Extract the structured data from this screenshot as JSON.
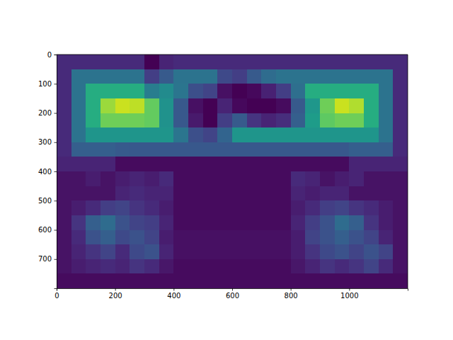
{
  "chart_data": {
    "type": "heatmap",
    "color": "viridis",
    "zlim": [
      0,
      1
    ],
    "xlim": [
      0,
      1200
    ],
    "ylim": [
      800,
      0
    ],
    "xticks": [
      0,
      200,
      400,
      600,
      800,
      1000
    ],
    "yticks": [
      0,
      100,
      200,
      300,
      400,
      500,
      600,
      700
    ],
    "xbins": [
      0,
      50,
      100,
      150,
      200,
      250,
      300,
      350,
      400,
      450,
      500,
      550,
      600,
      650,
      700,
      750,
      800,
      850,
      900,
      950,
      1000,
      1050,
      1100,
      1150,
      1200
    ],
    "ybins": [
      0,
      50,
      100,
      150,
      200,
      250,
      300,
      350,
      400,
      450,
      500,
      550,
      600,
      650,
      700,
      750,
      800
    ],
    "cells": [
      [
        0.12,
        0.12,
        0.12,
        0.12,
        0.12,
        0.12,
        0.0,
        0.1,
        0.12,
        0.12,
        0.12,
        0.12,
        0.12,
        0.12,
        0.12,
        0.12,
        0.12,
        0.12,
        0.12,
        0.12,
        0.12,
        0.12,
        0.12,
        0.12
      ],
      [
        0.12,
        0.38,
        0.38,
        0.38,
        0.38,
        0.38,
        0.18,
        0.28,
        0.38,
        0.38,
        0.38,
        0.22,
        0.18,
        0.28,
        0.35,
        0.38,
        0.38,
        0.38,
        0.38,
        0.38,
        0.38,
        0.38,
        0.38,
        0.12
      ],
      [
        0.12,
        0.38,
        0.62,
        0.62,
        0.62,
        0.62,
        0.42,
        0.48,
        0.39,
        0.24,
        0.2,
        0.04,
        0.0,
        0.02,
        0.09,
        0.18,
        0.36,
        0.62,
        0.62,
        0.62,
        0.62,
        0.62,
        0.38,
        0.12
      ],
      [
        0.12,
        0.38,
        0.62,
        0.85,
        0.92,
        0.9,
        0.76,
        0.51,
        0.27,
        0.04,
        0.0,
        0.1,
        0.02,
        0.0,
        0.0,
        0.03,
        0.28,
        0.53,
        0.78,
        0.92,
        0.88,
        0.62,
        0.38,
        0.12
      ],
      [
        0.12,
        0.38,
        0.62,
        0.78,
        0.78,
        0.78,
        0.76,
        0.51,
        0.27,
        0.07,
        0.0,
        0.18,
        0.28,
        0.15,
        0.1,
        0.13,
        0.3,
        0.55,
        0.75,
        0.78,
        0.78,
        0.62,
        0.38,
        0.12
      ],
      [
        0.12,
        0.38,
        0.52,
        0.52,
        0.52,
        0.52,
        0.52,
        0.52,
        0.39,
        0.24,
        0.2,
        0.32,
        0.52,
        0.52,
        0.52,
        0.52,
        0.52,
        0.52,
        0.52,
        0.52,
        0.52,
        0.52,
        0.38,
        0.12
      ],
      [
        0.12,
        0.3,
        0.3,
        0.3,
        0.28,
        0.27,
        0.27,
        0.27,
        0.27,
        0.27,
        0.27,
        0.27,
        0.27,
        0.27,
        0.27,
        0.27,
        0.27,
        0.27,
        0.27,
        0.27,
        0.3,
        0.3,
        0.3,
        0.12
      ],
      [
        0.1,
        0.1,
        0.1,
        0.1,
        0.03,
        0.03,
        0.03,
        0.03,
        0.03,
        0.03,
        0.03,
        0.03,
        0.03,
        0.03,
        0.03,
        0.03,
        0.03,
        0.03,
        0.03,
        0.03,
        0.1,
        0.1,
        0.1,
        0.1
      ],
      [
        0.05,
        0.05,
        0.08,
        0.05,
        0.08,
        0.1,
        0.08,
        0.12,
        0.03,
        0.03,
        0.03,
        0.03,
        0.03,
        0.03,
        0.03,
        0.03,
        0.12,
        0.1,
        0.05,
        0.08,
        0.1,
        0.05,
        0.05,
        0.05
      ],
      [
        0.05,
        0.05,
        0.05,
        0.05,
        0.1,
        0.12,
        0.1,
        0.1,
        0.03,
        0.03,
        0.03,
        0.03,
        0.03,
        0.03,
        0.03,
        0.03,
        0.1,
        0.08,
        0.1,
        0.1,
        0.05,
        0.05,
        0.05,
        0.05
      ],
      [
        0.05,
        0.08,
        0.12,
        0.18,
        0.2,
        0.15,
        0.12,
        0.08,
        0.03,
        0.03,
        0.03,
        0.03,
        0.03,
        0.03,
        0.03,
        0.03,
        0.08,
        0.12,
        0.18,
        0.2,
        0.15,
        0.12,
        0.08,
        0.05
      ],
      [
        0.05,
        0.15,
        0.3,
        0.35,
        0.25,
        0.2,
        0.18,
        0.1,
        0.03,
        0.03,
        0.03,
        0.03,
        0.03,
        0.03,
        0.03,
        0.03,
        0.1,
        0.18,
        0.25,
        0.35,
        0.3,
        0.15,
        0.08,
        0.05
      ],
      [
        0.05,
        0.12,
        0.25,
        0.3,
        0.22,
        0.25,
        0.2,
        0.08,
        0.04,
        0.04,
        0.04,
        0.04,
        0.04,
        0.04,
        0.04,
        0.04,
        0.08,
        0.2,
        0.25,
        0.3,
        0.25,
        0.2,
        0.1,
        0.05
      ],
      [
        0.05,
        0.1,
        0.15,
        0.2,
        0.12,
        0.22,
        0.25,
        0.1,
        0.04,
        0.04,
        0.04,
        0.04,
        0.04,
        0.04,
        0.04,
        0.04,
        0.08,
        0.15,
        0.22,
        0.25,
        0.2,
        0.25,
        0.2,
        0.05
      ],
      [
        0.05,
        0.08,
        0.1,
        0.12,
        0.1,
        0.15,
        0.12,
        0.06,
        0.03,
        0.03,
        0.03,
        0.03,
        0.03,
        0.03,
        0.03,
        0.03,
        0.06,
        0.1,
        0.15,
        0.12,
        0.15,
        0.2,
        0.12,
        0.05
      ],
      [
        0.03,
        0.03,
        0.03,
        0.03,
        0.03,
        0.03,
        0.03,
        0.03,
        0.03,
        0.03,
        0.03,
        0.03,
        0.03,
        0.03,
        0.03,
        0.03,
        0.03,
        0.03,
        0.03,
        0.03,
        0.03,
        0.03,
        0.03,
        0.03
      ]
    ]
  }
}
